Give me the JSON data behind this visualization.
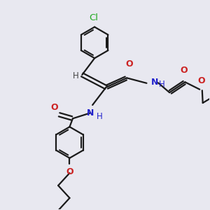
{
  "bg_color": "#e8e8f0",
  "bond_color": "#1a1a1a",
  "N_color": "#2222cc",
  "O_color": "#cc2222",
  "Cl_color": "#22aa22",
  "H_color": "#444444",
  "lw": 1.6,
  "fs": 8.5,
  "xlim": [
    0,
    10
  ],
  "ylim": [
    0,
    10
  ]
}
